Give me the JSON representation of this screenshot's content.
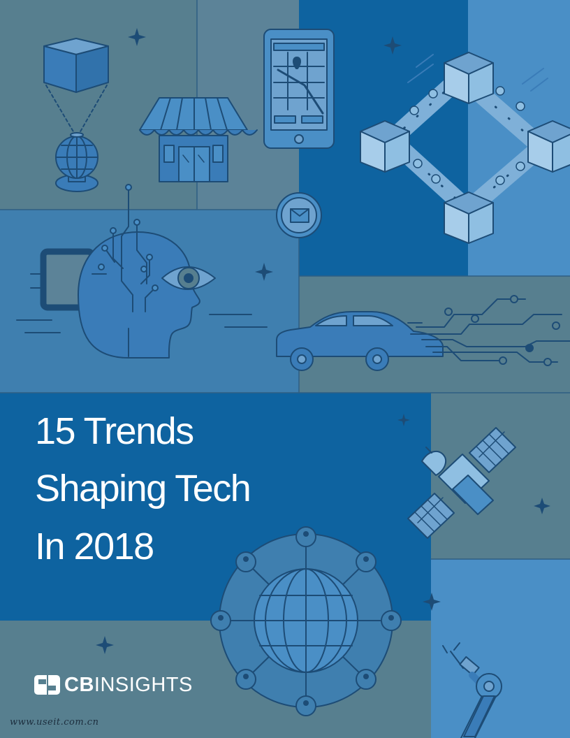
{
  "document": {
    "title_lines": [
      "15 Trends",
      "Shaping Tech",
      "In 2018"
    ],
    "brand": {
      "name_bold": "CB",
      "name_regular": "INSIGHTS",
      "icon": "cb-logo-mark-icon"
    },
    "watermark": "www.useit.com.cn"
  },
  "colors": {
    "slate": "#577f8f",
    "medium_blue": "#3f7faf",
    "deep_blue": "#0e63a0",
    "light_blue": "#4a8fc6",
    "line": "#1d4c76",
    "icon_fill": "#3a7cb8",
    "text": "#ffffff"
  },
  "illustrations": [
    "hologram-cube-icon",
    "storefront-icon",
    "smartphone-map-icon",
    "blockchain-icon",
    "email-badge-icon",
    "ai-head-icon",
    "autonomous-car-icon",
    "circuit-lines-icon",
    "satellite-icon",
    "global-network-icon",
    "robot-arm-icon",
    "sparkle-icon"
  ]
}
